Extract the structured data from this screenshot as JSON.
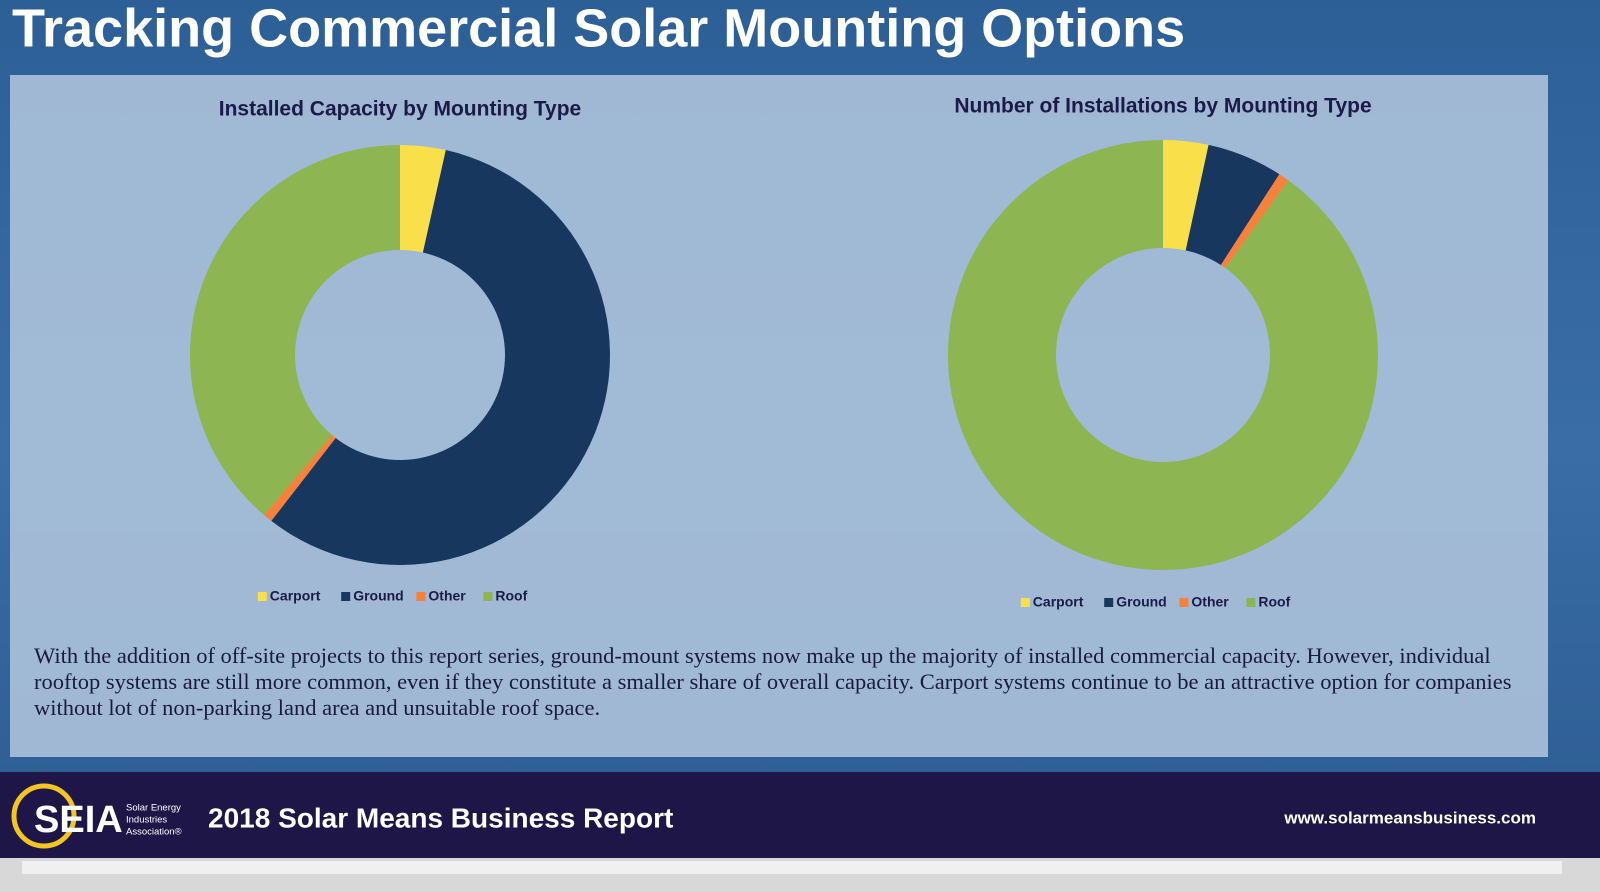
{
  "header": {
    "title": "Tracking Commercial Solar Mounting Options"
  },
  "chart_data": [
    {
      "type": "donut",
      "title": "Installed Capacity by Mounting Type",
      "categories": [
        "Carport",
        "Ground",
        "Other",
        "Roof"
      ],
      "values": [
        3.5,
        57,
        0.7,
        38.8
      ],
      "colors": [
        "#f9e04b",
        "#17375e",
        "#f7803b",
        "#8db551"
      ]
    },
    {
      "type": "donut",
      "title": "Number of Installations by Mounting Type",
      "categories": [
        "Carport",
        "Ground",
        "Other",
        "Roof"
      ],
      "values": [
        3.4,
        5.7,
        0.8,
        90.1
      ],
      "colors": [
        "#f9e04b",
        "#17375e",
        "#f7803b",
        "#8db551"
      ]
    }
  ],
  "body": {
    "text": "With the addition of off-site projects to this report series, ground-mount systems now make up the majority of installed commercial capacity. However, individual rooftop systems are still more common, even if they constitute a smaller share of overall capacity. Carport systems continue to be an attractive option for companies without lot of non-parking land area and unsuitable roof space."
  },
  "footer": {
    "logo": "SEIA",
    "logo_lines": [
      "Solar Energy",
      "Industries",
      "Association®"
    ],
    "report": "2018 Solar Means Business Report",
    "url": "www.solarmeansbusiness.com"
  }
}
